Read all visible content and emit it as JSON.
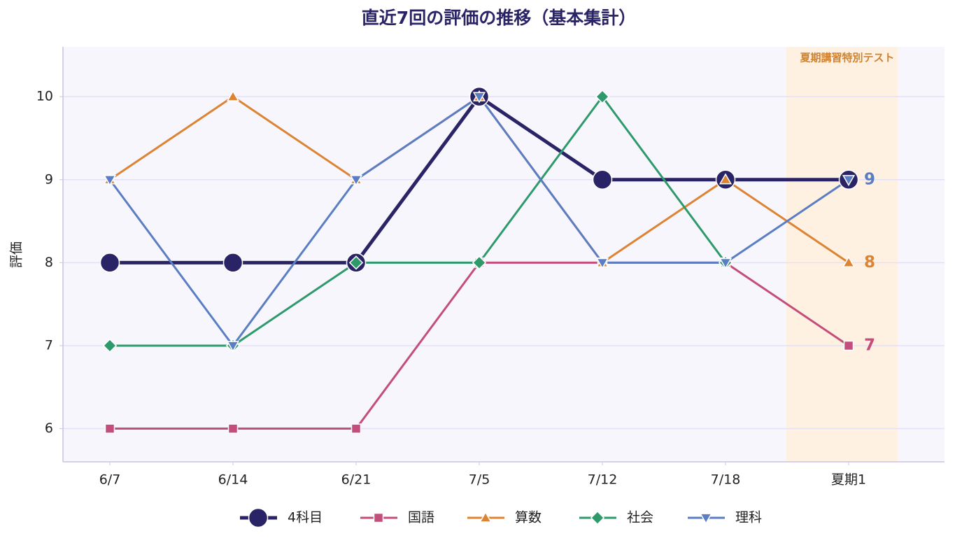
{
  "chart_data": {
    "type": "line",
    "title": "直近7回の評価の推移（基本集計）",
    "ylabel": "評価",
    "annotation": "夏期講習特別テスト",
    "categories": [
      "6/7",
      "6/14",
      "6/21",
      "7/5",
      "7/12",
      "7/18",
      "夏期1"
    ],
    "ylim": [
      5.6,
      10.6
    ],
    "yticks": [
      6,
      7,
      8,
      9,
      10
    ],
    "grid": true,
    "series": [
      {
        "name": "4科目",
        "color": "#2a2466",
        "marker": "circle",
        "width": 5,
        "values": [
          8,
          8,
          8,
          10,
          9,
          9,
          9
        ]
      },
      {
        "name": "国語",
        "color": "#c44e7b",
        "marker": "square",
        "width": 3,
        "label_last": true,
        "values": [
          6,
          6,
          6,
          8,
          8,
          8,
          7
        ]
      },
      {
        "name": "算数",
        "color": "#dd8434",
        "marker": "triangle-up",
        "width": 3,
        "label_last": true,
        "values": [
          9,
          10,
          9,
          10,
          8,
          9,
          8
        ]
      },
      {
        "name": "社会",
        "color": "#2e9a6b",
        "marker": "diamond",
        "width": 3,
        "values": [
          7,
          7,
          8,
          8,
          10,
          8,
          null
        ]
      },
      {
        "name": "理科",
        "color": "#5a7dc4",
        "marker": "triangle-down",
        "width": 3,
        "label_last": true,
        "values": [
          9,
          7,
          9,
          10,
          8,
          8,
          9
        ]
      }
    ]
  }
}
